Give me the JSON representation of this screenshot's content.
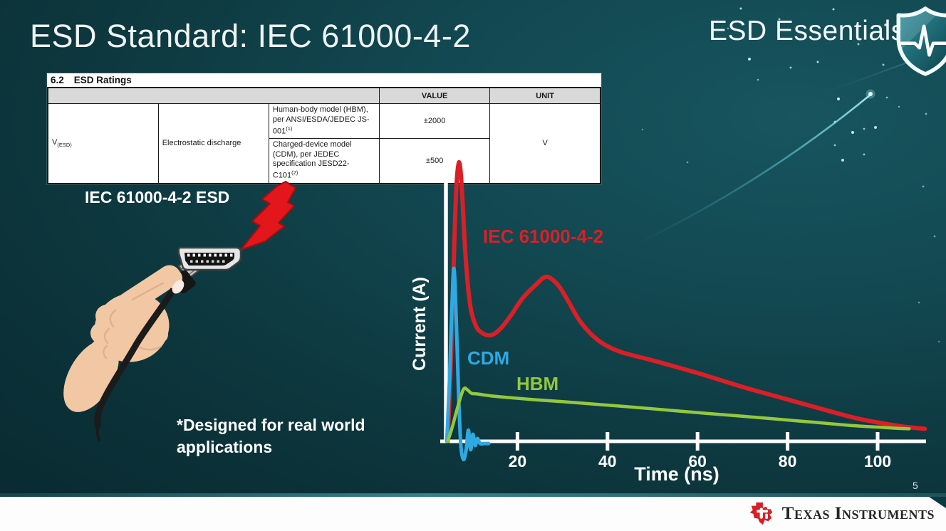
{
  "slide": {
    "title": "ESD Standard: IEC 61000-4-2",
    "brand": "ESD Essentials",
    "page_number": "5",
    "footer_brand": "Texas Instruments"
  },
  "ratings_table": {
    "section_number": "6.2",
    "section_title": "ESD Ratings",
    "value_header": "VALUE",
    "unit_header": "UNIT",
    "symbol": "V",
    "symbol_subscript": "(ESD)",
    "parameter": "Electrostatic discharge",
    "rows": [
      {
        "description": "Human-body model (HBM), per ANSI/ESDA/JEDEC JS-001",
        "superscript": "(1)",
        "value": "±2000"
      },
      {
        "description_line1": "Charged-device model (CDM), per JEDEC specification JESD22-",
        "description_line2": "C101",
        "superscript": "(2)",
        "value": "±500"
      }
    ],
    "unit": "V"
  },
  "illustration": {
    "caption": "IEC 61000-4-2 ESD",
    "footnote_line1": "*Designed for real world",
    "footnote_line2": "applications"
  },
  "chart_data": {
    "type": "line",
    "title": "",
    "xlabel": "Time (ns)",
    "ylabel": "Current (A)",
    "x_ticks": [
      20,
      40,
      60,
      80,
      100
    ],
    "x_range_ns": [
      0,
      111
    ],
    "y_axis_note": "unlabeled relative current amplitude; red IEC 61000-4-2 first peak = 1.0",
    "grid": false,
    "legend": "inline labels next to curves",
    "series": [
      {
        "name": "IEC 61000-4-2",
        "color": "#da1f26",
        "label_xy": [
          100,
          131
        ],
        "points": [
          [
            4.5,
            0
          ],
          [
            5.2,
            0.28
          ],
          [
            5.8,
            0.62
          ],
          [
            6.4,
            0.9
          ],
          [
            7,
            1
          ],
          [
            7.6,
            0.92
          ],
          [
            8.4,
            0.68
          ],
          [
            9.4,
            0.5
          ],
          [
            10.6,
            0.42
          ],
          [
            12,
            0.39
          ],
          [
            14,
            0.38
          ],
          [
            16,
            0.4
          ],
          [
            18.5,
            0.45
          ],
          [
            21,
            0.51
          ],
          [
            24,
            0.56
          ],
          [
            26.5,
            0.59
          ],
          [
            29,
            0.56
          ],
          [
            31,
            0.51
          ],
          [
            33.5,
            0.44
          ],
          [
            36,
            0.39
          ],
          [
            39,
            0.35
          ],
          [
            43,
            0.32
          ],
          [
            50,
            0.29
          ],
          [
            60,
            0.245
          ],
          [
            70,
            0.195
          ],
          [
            80,
            0.15
          ],
          [
            90,
            0.105
          ],
          [
            96,
            0.08
          ],
          [
            102,
            0.062
          ],
          [
            106,
            0.052
          ],
          [
            110.5,
            0.045
          ]
        ]
      },
      {
        "name": "CDM",
        "color": "#2fa9e1",
        "label_xy": [
          78,
          302
        ],
        "points": [
          [
            4.3,
            0
          ],
          [
            4.9,
            0.22
          ],
          [
            5.4,
            0.46
          ],
          [
            5.9,
            0.62
          ],
          [
            6.4,
            0.44
          ],
          [
            6.9,
            0.18
          ],
          [
            7.4,
            -0.01
          ],
          [
            8,
            -0.065
          ],
          [
            8.6,
            -0.03
          ],
          [
            9.1,
            0.04
          ],
          [
            9.6,
            -0.03
          ],
          [
            10.1,
            0.025
          ],
          [
            10.6,
            -0.015
          ],
          [
            11.1,
            0.01
          ],
          [
            11.7,
            -0.008
          ],
          [
            12.6,
            -0.008
          ],
          [
            13.6,
            -0.008
          ]
        ]
      },
      {
        "name": "HBM",
        "color": "#93c83d",
        "label_xy": [
          147,
          338
        ],
        "points": [
          [
            4.5,
            0
          ],
          [
            5.5,
            0.05
          ],
          [
            6.5,
            0.11
          ],
          [
            7.5,
            0.165
          ],
          [
            8.2,
            0.19
          ],
          [
            9,
            0.183
          ],
          [
            9.8,
            0.172
          ],
          [
            11,
            0.17
          ],
          [
            14,
            0.163
          ],
          [
            18,
            0.157
          ],
          [
            24,
            0.149
          ],
          [
            30,
            0.142
          ],
          [
            38,
            0.132
          ],
          [
            46,
            0.122
          ],
          [
            54,
            0.111
          ],
          [
            62,
            0.1
          ],
          [
            70,
            0.09
          ],
          [
            78,
            0.079
          ],
          [
            86,
            0.068
          ],
          [
            94,
            0.057
          ],
          [
            100,
            0.051
          ],
          [
            104,
            0.047
          ],
          [
            107,
            0.045
          ]
        ]
      }
    ]
  },
  "colors": {
    "background_teal": "#0d363d",
    "iec_red": "#da1f26",
    "cdm_blue": "#2fa9e1",
    "hbm_green": "#93c83d",
    "axis_white": "#ffffff",
    "ti_red": "#d81e27"
  }
}
